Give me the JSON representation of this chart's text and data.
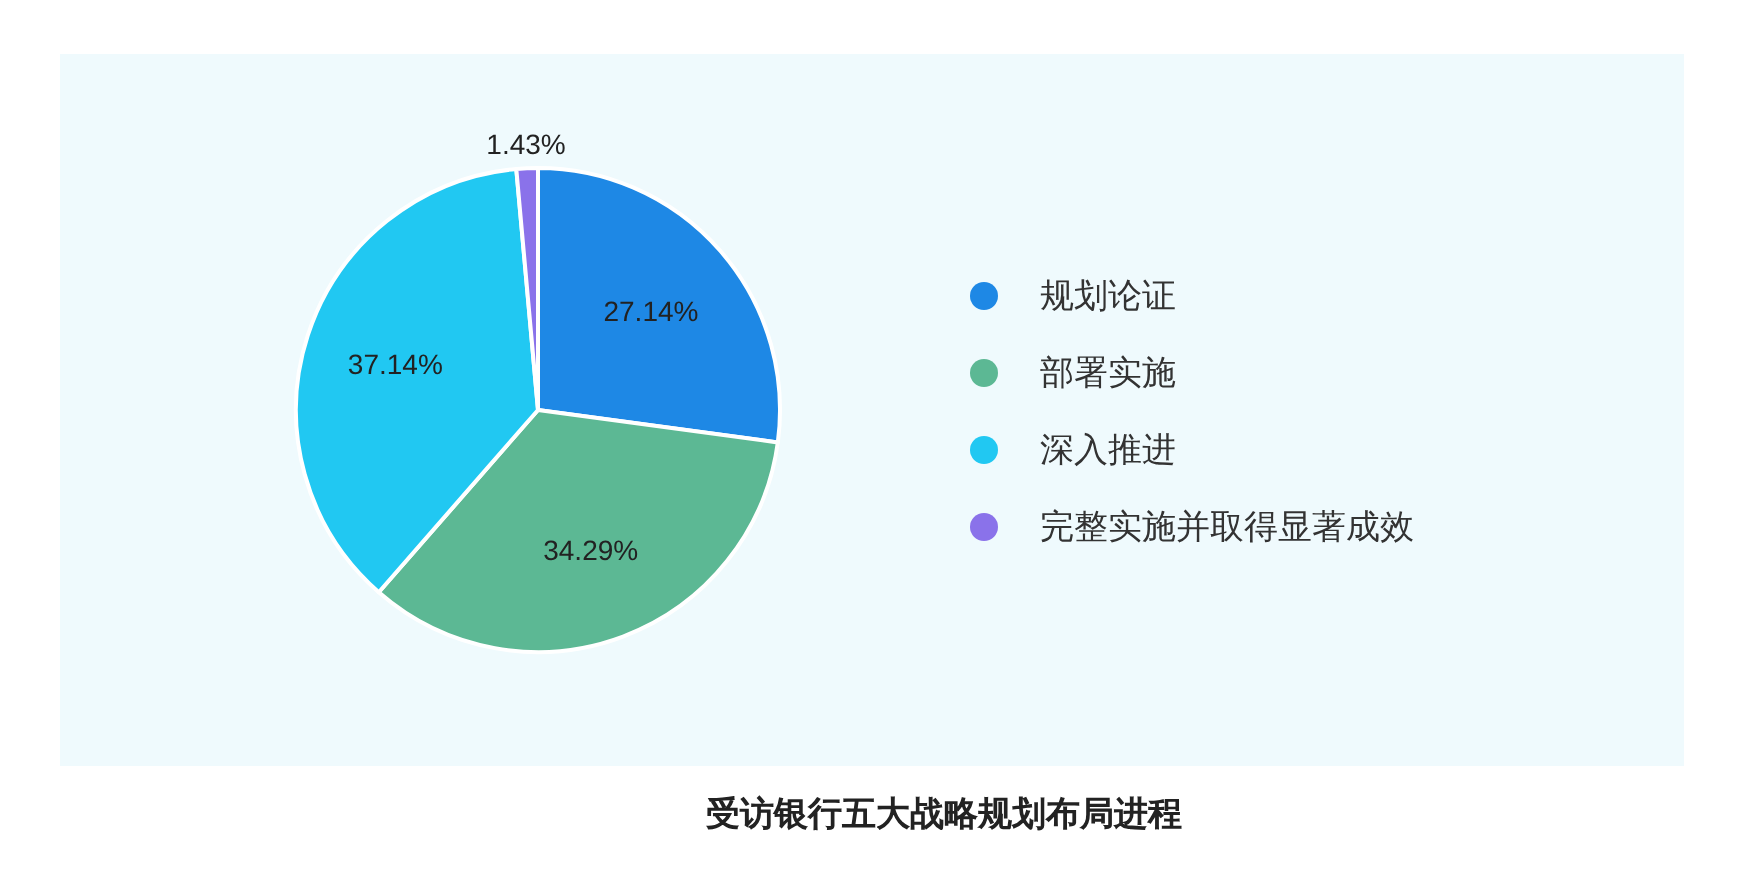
{
  "chart_data": {
    "type": "pie",
    "title": "受访银行五大战略规划布局进程",
    "categories": [
      "规划论证",
      "部署实施",
      "深入推进",
      "完整实施并取得显著成效"
    ],
    "values": [
      27.14,
      34.29,
      37.14,
      1.43
    ],
    "colors": [
      "#1e88e5",
      "#5cb894",
      "#21c8f2",
      "#8a72ea"
    ],
    "value_labels": [
      "27.14%",
      "34.29%",
      "37.14%",
      "1.43%"
    ],
    "legend": "right"
  }
}
